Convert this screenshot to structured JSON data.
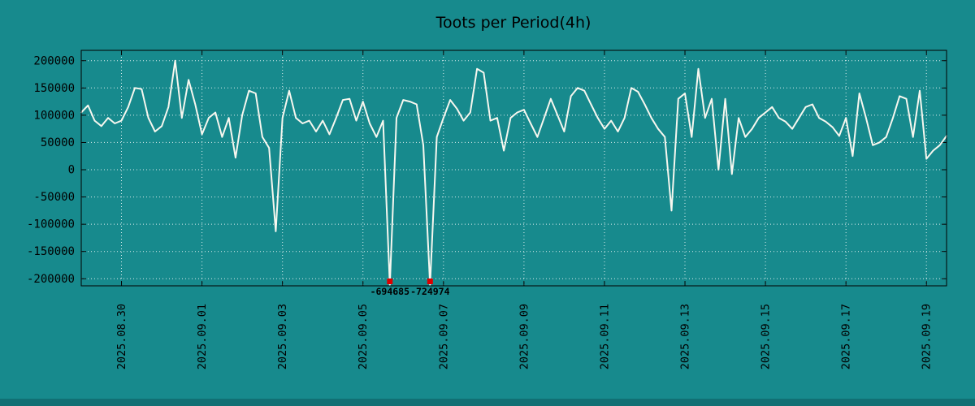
{
  "chart_data": {
    "type": "line",
    "title": "Toots per Period(4h)",
    "xlabel": "",
    "ylabel": "",
    "grid": true,
    "legend": "none",
    "y_ticks": [
      200000,
      150000,
      100000,
      50000,
      0,
      -50000,
      -100000,
      -150000,
      -200000
    ],
    "y_range": [
      -213000,
      219000
    ],
    "x_tick_labels": [
      "2025.08.30",
      "2025.09.01",
      "2025.09.03",
      "2025.09.05",
      "2025.09.07",
      "2025.09.09",
      "2025.09.11",
      "2025.09.13",
      "2025.09.15",
      "2025.09.17",
      "2025.09.19"
    ],
    "x_tick_indices": [
      6,
      18,
      30,
      42,
      54,
      66,
      78,
      90,
      102,
      114,
      126
    ],
    "period": "4h",
    "series": [
      {
        "name": "toots",
        "values": [
          105000,
          118000,
          90000,
          80000,
          95000,
          85000,
          90000,
          115000,
          150000,
          148000,
          95000,
          70000,
          80000,
          115000,
          200000,
          95000,
          165000,
          120000,
          65000,
          95000,
          105000,
          60000,
          95000,
          22000,
          100000,
          145000,
          140000,
          60000,
          40000,
          -113000,
          95000,
          145000,
          95000,
          85000,
          90000,
          70000,
          90000,
          65000,
          95000,
          128000,
          130000,
          90000,
          125000,
          85000,
          60000,
          90000,
          -694685,
          95000,
          128000,
          125000,
          120000,
          45000,
          -724974,
          60000,
          95000,
          128000,
          112000,
          90000,
          105000,
          185000,
          178000,
          90000,
          95000,
          35000,
          95000,
          105000,
          110000,
          85000,
          60000,
          95000,
          130000,
          100000,
          70000,
          135000,
          150000,
          145000,
          120000,
          95000,
          75000,
          90000,
          70000,
          95000,
          150000,
          143000,
          120000,
          95000,
          75000,
          60000,
          -75000,
          130000,
          140000,
          60000,
          185000,
          95000,
          130000,
          0,
          130000,
          -8000,
          95000,
          60000,
          75000,
          95000,
          105000,
          115000,
          95000,
          88000,
          75000,
          95000,
          115000,
          120000,
          95000,
          88000,
          78000,
          62000,
          95000,
          25000,
          140000,
          95000,
          45000,
          50000,
          60000,
          95000,
          135000,
          130000,
          60000,
          145000,
          20000,
          35000,
          45000,
          62000
        ]
      }
    ],
    "annotations": [
      {
        "label": "-694685",
        "value": -694685,
        "index": 46
      },
      {
        "label": "-724974",
        "value": -724974,
        "index": 52
      }
    ],
    "colors": {
      "background": "#178a8d",
      "background_edge": "#117074",
      "line": "#f7f7ef",
      "grid": "#ffffff",
      "text": "#000000",
      "marker": "#dd0000",
      "border": "#000000"
    }
  }
}
